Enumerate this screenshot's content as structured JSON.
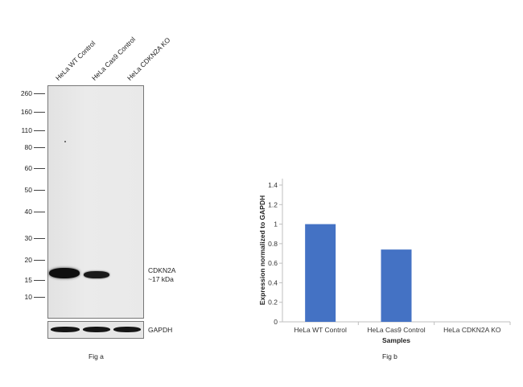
{
  "blot": {
    "lanes": [
      "HeLa WT Control",
      "HeLa Cas9 Control",
      "HeLa CDKN2A KO"
    ],
    "markers": [
      "260",
      "160",
      "110",
      "80",
      "60",
      "50",
      "40",
      "30",
      "20",
      "15",
      "10"
    ],
    "target_label": "CDKN2A",
    "target_size": "~17 kDa",
    "loading_control": "GAPDH",
    "caption": "Fig a"
  },
  "chart_data": {
    "type": "bar",
    "categories": [
      "HeLa WT Control",
      "HeLa Cas9 Control",
      "HeLa CDKN2A KO"
    ],
    "values": [
      1.0,
      0.74,
      0.0
    ],
    "title": "",
    "xlabel": "Samples",
    "ylabel": "Expression normalized to GAPDH",
    "ylim": [
      0,
      1.4
    ],
    "yticks": [
      "0",
      "0.2",
      "0.4",
      "0.6",
      "0.8",
      "1",
      "1.2",
      "1.4"
    ],
    "bar_color": "#4472c4",
    "grid": false,
    "legend": "none",
    "caption": "Fig b"
  }
}
